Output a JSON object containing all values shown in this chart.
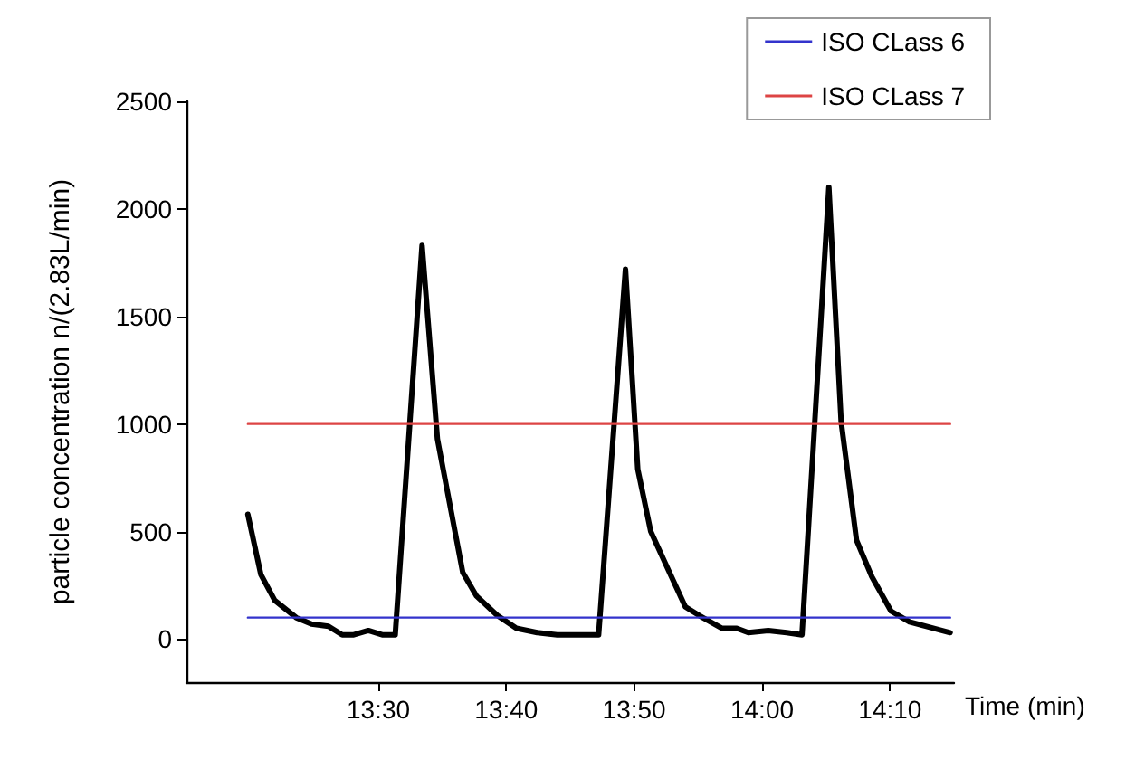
{
  "chart_data": {
    "type": "line",
    "xlabel": "Time (min)",
    "ylabel": "particle concentration n/(2.83L/min)",
    "xlim": [
      13.25,
      14.25
    ],
    "xticks": [
      {
        "value": 13.5,
        "label": "13:30"
      },
      {
        "value": 13.6667,
        "label": "13:40"
      },
      {
        "value": 13.8333,
        "label": "13:50"
      },
      {
        "value": 14.0,
        "label": "14:00"
      },
      {
        "value": 14.1667,
        "label": "14:10"
      }
    ],
    "ylim": [
      -200,
      2500
    ],
    "yticks": [
      0,
      500,
      1000,
      1500,
      2000,
      2500
    ],
    "grid": false,
    "legend": "top right",
    "marker": "none",
    "line_style": "solid",
    "series": [
      {
        "color": "#000000",
        "x": [
          13.33,
          13.347,
          13.365,
          13.393,
          13.413,
          13.435,
          13.453,
          13.468,
          13.487,
          13.505,
          13.522,
          13.557,
          13.577,
          13.61,
          13.628,
          13.655,
          13.68,
          13.707,
          13.733,
          13.758,
          13.787,
          13.822,
          13.838,
          13.855,
          13.878,
          13.9,
          13.918,
          13.948,
          13.967,
          13.982,
          14.008,
          14.032,
          14.052,
          14.087,
          14.103,
          14.123,
          14.143,
          14.168,
          14.192,
          14.213,
          14.245
        ],
        "values": [
          580,
          300,
          180,
          100,
          70,
          60,
          20,
          20,
          40,
          20,
          20,
          1830,
          930,
          310,
          200,
          110,
          50,
          30,
          20,
          20,
          20,
          1720,
          790,
          500,
          320,
          150,
          110,
          50,
          50,
          30,
          40,
          30,
          20,
          2100,
          1010,
          460,
          290,
          130,
          80,
          60,
          30
        ]
      },
      {
        "name": "ISO CLass 6",
        "color": "#3333cc",
        "x": [
          13.33,
          14.245
        ],
        "values": [
          100,
          100
        ]
      },
      {
        "name": "ISO CLass 7",
        "color": "#dd4444",
        "x": [
          13.33,
          14.245
        ],
        "values": [
          1000,
          1000
        ]
      }
    ]
  }
}
